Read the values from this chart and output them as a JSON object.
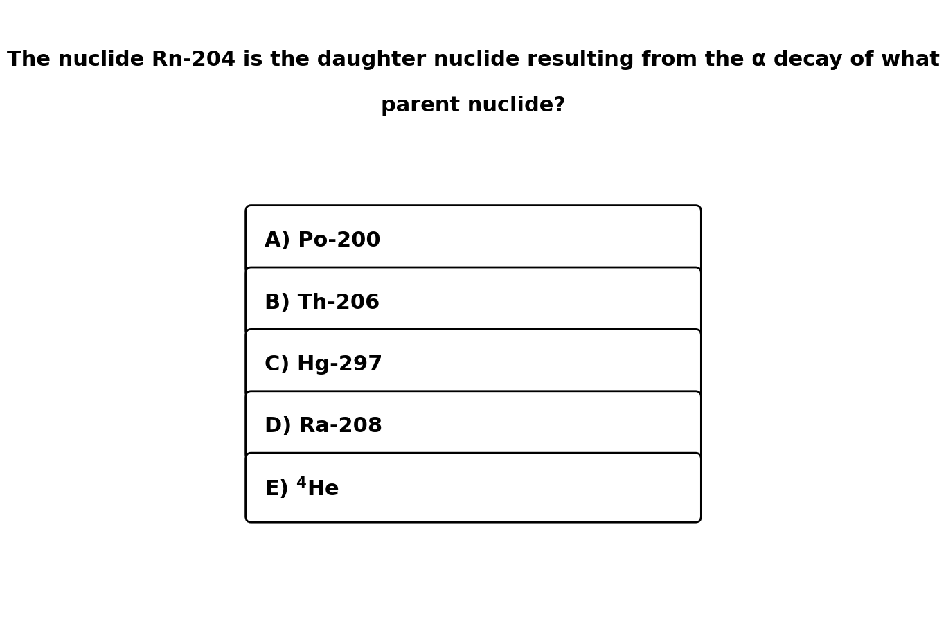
{
  "title_line1": "The nuclide Rn-204 is the daughter nuclide resulting from the α decay of what",
  "title_line2": "parent nuclide?",
  "options": [
    {
      "label": "A) Po-200",
      "superscript": null
    },
    {
      "label": "B) Th-206",
      "superscript": null
    },
    {
      "label": "C) Hg-297",
      "superscript": null
    },
    {
      "label": "D) Ra-208",
      "superscript": null
    },
    {
      "label_parts": [
        {
          "text": "E) ",
          "super": null
        },
        {
          "text": "4",
          "super": true
        },
        {
          "text": "He",
          "super": false
        }
      ],
      "label": "E) $^{4}$He",
      "superscript": null
    }
  ],
  "bg_color": "#ffffff",
  "text_color": "#000000",
  "box_edge_color": "#000000",
  "box_face_color": "#ffffff",
  "title_fontsize": 22,
  "option_fontsize": 22,
  "fig_width": 12.0,
  "fig_height": 8.85
}
